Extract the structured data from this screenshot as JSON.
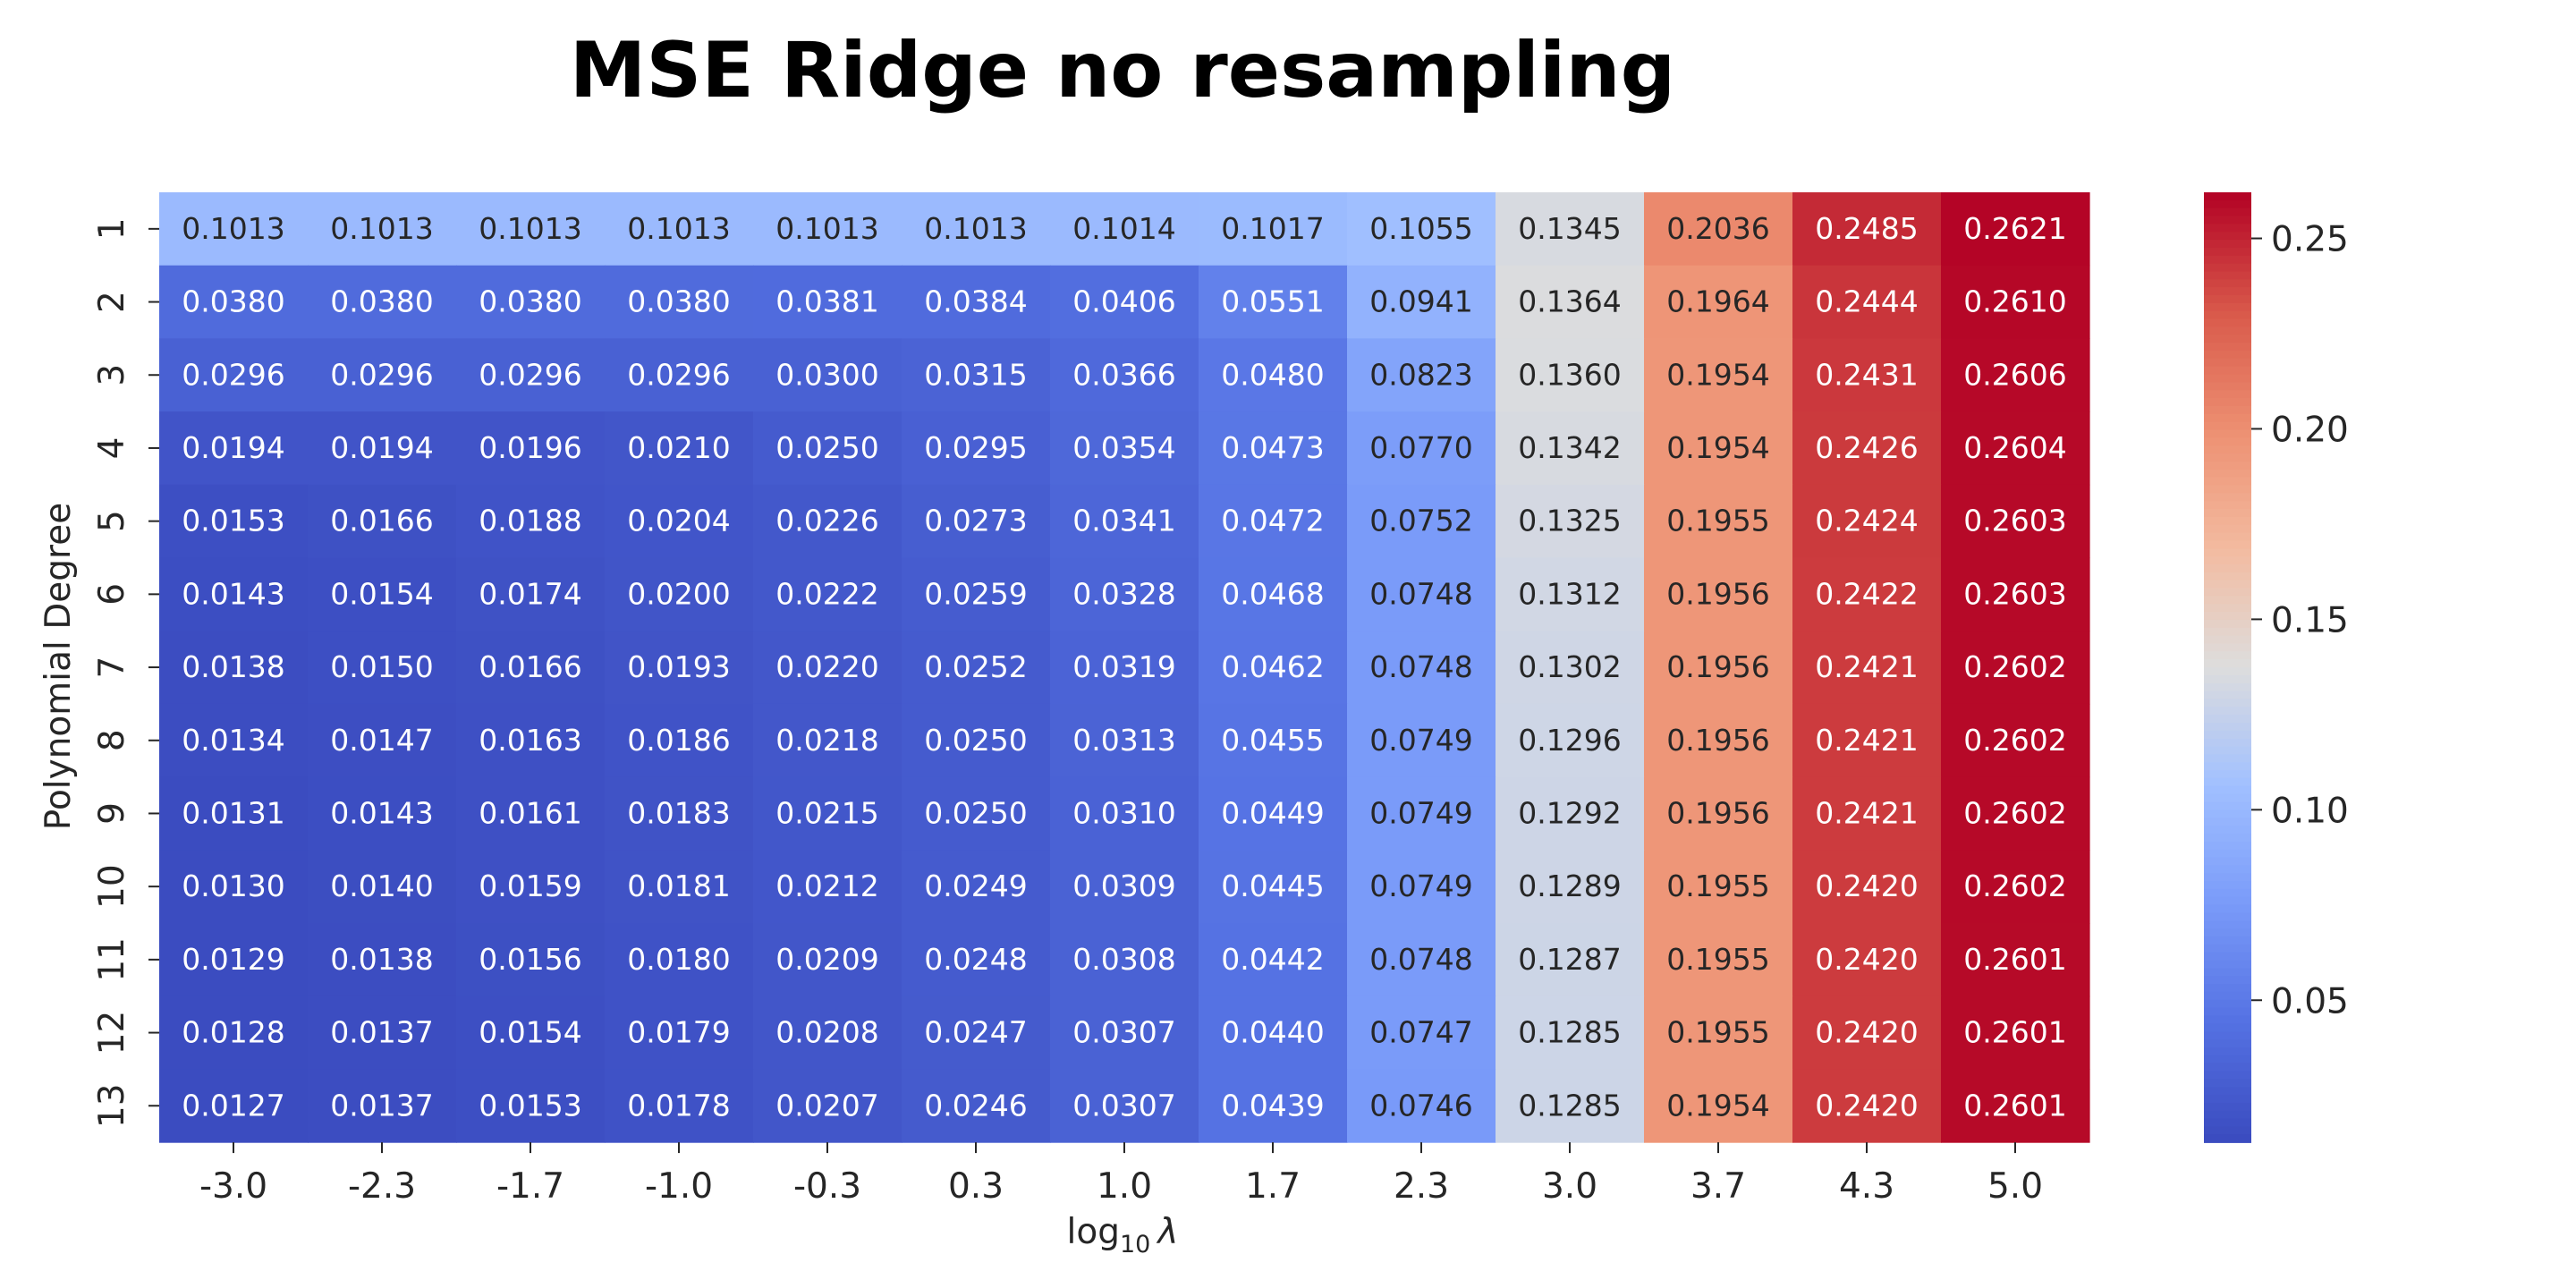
{
  "chart_data": {
    "type": "heatmap",
    "title": "MSE Ridge no resampling",
    "xlabel_prefix": "log",
    "xlabel_sub": "10",
    "xlabel_symbol": "λ",
    "ylabel": "Polynomial Degree",
    "x_categories": [
      "-3.0",
      "-2.3",
      "-1.7",
      "-1.0",
      "-0.3",
      "0.3",
      "1.0",
      "1.7",
      "2.3",
      "3.0",
      "3.7",
      "4.3",
      "5.0"
    ],
    "y_categories": [
      "1",
      "2",
      "3",
      "4",
      "5",
      "6",
      "7",
      "8",
      "9",
      "10",
      "11",
      "12",
      "13"
    ],
    "colormap": "coolwarm",
    "vmin": 0.0127,
    "vmax": 0.2621,
    "colorbar_ticks": [
      "0.05",
      "0.10",
      "0.15",
      "0.20",
      "0.25"
    ],
    "values": [
      [
        "0.1013",
        "0.1013",
        "0.1013",
        "0.1013",
        "0.1013",
        "0.1013",
        "0.1014",
        "0.1017",
        "0.1055",
        "0.1345",
        "0.2036",
        "0.2485",
        "0.2621"
      ],
      [
        "0.0380",
        "0.0380",
        "0.0380",
        "0.0380",
        "0.0381",
        "0.0384",
        "0.0406",
        "0.0551",
        "0.0941",
        "0.1364",
        "0.1964",
        "0.2444",
        "0.2610"
      ],
      [
        "0.0296",
        "0.0296",
        "0.0296",
        "0.0296",
        "0.0300",
        "0.0315",
        "0.0366",
        "0.0480",
        "0.0823",
        "0.1360",
        "0.1954",
        "0.2431",
        "0.2606"
      ],
      [
        "0.0194",
        "0.0194",
        "0.0196",
        "0.0210",
        "0.0250",
        "0.0295",
        "0.0354",
        "0.0473",
        "0.0770",
        "0.1342",
        "0.1954",
        "0.2426",
        "0.2604"
      ],
      [
        "0.0153",
        "0.0166",
        "0.0188",
        "0.0204",
        "0.0226",
        "0.0273",
        "0.0341",
        "0.0472",
        "0.0752",
        "0.1325",
        "0.1955",
        "0.2424",
        "0.2603"
      ],
      [
        "0.0143",
        "0.0154",
        "0.0174",
        "0.0200",
        "0.0222",
        "0.0259",
        "0.0328",
        "0.0468",
        "0.0748",
        "0.1312",
        "0.1956",
        "0.2422",
        "0.2603"
      ],
      [
        "0.0138",
        "0.0150",
        "0.0166",
        "0.0193",
        "0.0220",
        "0.0252",
        "0.0319",
        "0.0462",
        "0.0748",
        "0.1302",
        "0.1956",
        "0.2421",
        "0.2602"
      ],
      [
        "0.0134",
        "0.0147",
        "0.0163",
        "0.0186",
        "0.0218",
        "0.0250",
        "0.0313",
        "0.0455",
        "0.0749",
        "0.1296",
        "0.1956",
        "0.2421",
        "0.2602"
      ],
      [
        "0.0131",
        "0.0143",
        "0.0161",
        "0.0183",
        "0.0215",
        "0.0250",
        "0.0310",
        "0.0449",
        "0.0749",
        "0.1292",
        "0.1956",
        "0.2421",
        "0.2602"
      ],
      [
        "0.0130",
        "0.0140",
        "0.0159",
        "0.0181",
        "0.0212",
        "0.0249",
        "0.0309",
        "0.0445",
        "0.0749",
        "0.1289",
        "0.1955",
        "0.2420",
        "0.2602"
      ],
      [
        "0.0129",
        "0.0138",
        "0.0156",
        "0.0180",
        "0.0209",
        "0.0248",
        "0.0308",
        "0.0442",
        "0.0748",
        "0.1287",
        "0.1955",
        "0.2420",
        "0.2601"
      ],
      [
        "0.0128",
        "0.0137",
        "0.0154",
        "0.0179",
        "0.0208",
        "0.0247",
        "0.0307",
        "0.0440",
        "0.0747",
        "0.1285",
        "0.1955",
        "0.2420",
        "0.2601"
      ],
      [
        "0.0127",
        "0.0137",
        "0.0153",
        "0.0178",
        "0.0207",
        "0.0246",
        "0.0307",
        "0.0439",
        "0.0746",
        "0.1285",
        "0.1954",
        "0.2420",
        "0.2601"
      ]
    ]
  }
}
